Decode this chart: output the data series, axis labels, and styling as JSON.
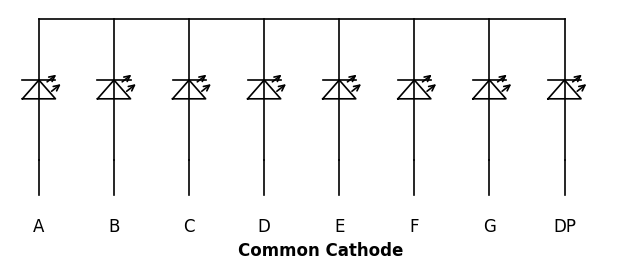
{
  "labels": [
    "A",
    "B",
    "C",
    "D",
    "E",
    "F",
    "G",
    "DP"
  ],
  "n_leds": 8,
  "background_color": "#ffffff",
  "line_color": "#000000",
  "title": "Common Cathode",
  "title_fontsize": 12,
  "label_fontsize": 12,
  "fig_width": 6.41,
  "fig_height": 2.59,
  "dpi": 100
}
